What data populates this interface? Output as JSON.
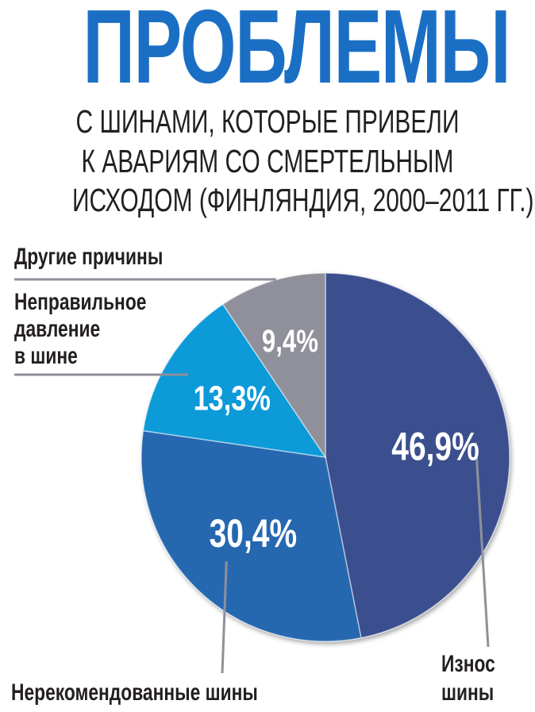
{
  "header": {
    "title": "ПРОБЛЕМЫ",
    "subtitle_lines": [
      "С ШИНАМИ, КОТОРЫЕ ПРИВЕЛИ",
      "К АВАРИЯМ СО СМЕРТЕЛЬНЫМ",
      "ИСХОДОМ (ФИНЛЯНДИЯ, 2000–2011 ГГ.)"
    ]
  },
  "labels": {
    "other": "Другие причины",
    "pressure_lines": [
      "Неправильное",
      "давление",
      "в шине"
    ],
    "nonrecommended": "Нерекомендованные  шины",
    "wear_lines": [
      "Износ",
      "шины"
    ]
  },
  "chart_data": {
    "type": "pie",
    "title": "ПРОБЛЕМЫ",
    "subtitle": "С ШИНАМИ, КОТОРЫЕ ПРИВЕЛИ К АВАРИЯМ СО СМЕРТЕЛЬНЫМ ИСХОДОМ (ФИНЛЯНДИЯ, 2000–2011 ГГ.)",
    "unit": "%",
    "slices": [
      {
        "label": "Износ шины",
        "value": 46.9,
        "display": "46,9%",
        "color": "#3a4f8f"
      },
      {
        "label": "Нерекомендованные  шины",
        "value": 30.4,
        "display": "30,4%",
        "color": "#2567b0"
      },
      {
        "label": "Неправильное давление в шине",
        "value": 13.3,
        "display": "13,3%",
        "color": "#0d9ad8"
      },
      {
        "label": "Другие причины",
        "value": 9.4,
        "display": "9,4%",
        "color": "#8f909a"
      }
    ]
  }
}
